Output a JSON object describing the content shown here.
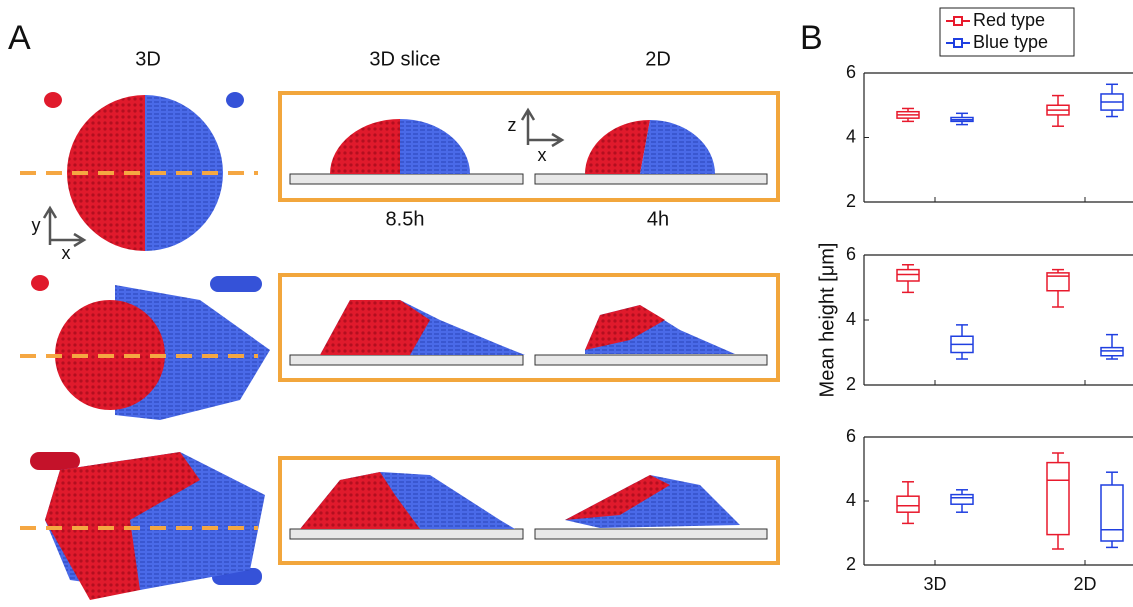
{
  "panel_a": {
    "label": "A",
    "columns": [
      "3D",
      "3D slice",
      "2D"
    ],
    "times": [
      "8.5h",
      "4h"
    ],
    "axes_xy": [
      "y",
      "x"
    ],
    "axes_zx": [
      "z",
      "x"
    ]
  },
  "panel_b": {
    "label": "B",
    "y_label": "Mean height [μm]"
  },
  "chart_data": [
    {
      "type": "box",
      "categories": [
        null,
        null
      ],
      "ylim": [
        2,
        6
      ],
      "yticks": [
        2,
        4,
        6
      ],
      "legend": "top",
      "series": [
        {
          "name": "Red type",
          "color": "#e8192c",
          "min": [
            4.5,
            4.35
          ],
          "q1": [
            4.6,
            4.7
          ],
          "median": [
            4.7,
            4.85
          ],
          "q3": [
            4.8,
            5.0
          ],
          "max": [
            4.9,
            5.3
          ]
        },
        {
          "name": "Blue type",
          "color": "#1f3fe0",
          "min": [
            4.4,
            4.65
          ],
          "q1": [
            4.5,
            4.85
          ],
          "median": [
            4.55,
            5.1
          ],
          "q3": [
            4.62,
            5.35
          ],
          "max": [
            4.75,
            5.65
          ]
        }
      ]
    },
    {
      "type": "box",
      "categories": [
        null,
        null
      ],
      "ylim": [
        2,
        6
      ],
      "yticks": [
        2,
        4,
        6
      ],
      "series": [
        {
          "color": "#e8192c",
          "min": [
            4.85,
            4.4
          ],
          "q1": [
            5.2,
            4.9
          ],
          "median": [
            5.4,
            5.35
          ],
          "q3": [
            5.55,
            5.45
          ],
          "max": [
            5.7,
            5.55
          ]
        },
        {
          "color": "#1f3fe0",
          "min": [
            2.8,
            2.8
          ],
          "q1": [
            3.0,
            2.9
          ],
          "median": [
            3.25,
            3.05
          ],
          "q3": [
            3.5,
            3.15
          ],
          "max": [
            3.85,
            3.55
          ]
        }
      ]
    },
    {
      "type": "box",
      "categories": [
        "3D",
        "2D"
      ],
      "ylim": [
        2,
        6
      ],
      "yticks": [
        2,
        4,
        6
      ],
      "series": [
        {
          "color": "#e8192c",
          "min": [
            3.3,
            2.5
          ],
          "q1": [
            3.65,
            2.95
          ],
          "median": [
            3.85,
            4.65
          ],
          "q3": [
            4.15,
            5.2
          ],
          "max": [
            4.6,
            5.5
          ]
        },
        {
          "color": "#1f3fe0",
          "min": [
            3.65,
            2.55
          ],
          "q1": [
            3.9,
            2.75
          ],
          "median": [
            4.1,
            3.1
          ],
          "q3": [
            4.2,
            4.5
          ],
          "max": [
            4.35,
            4.9
          ]
        }
      ]
    }
  ]
}
